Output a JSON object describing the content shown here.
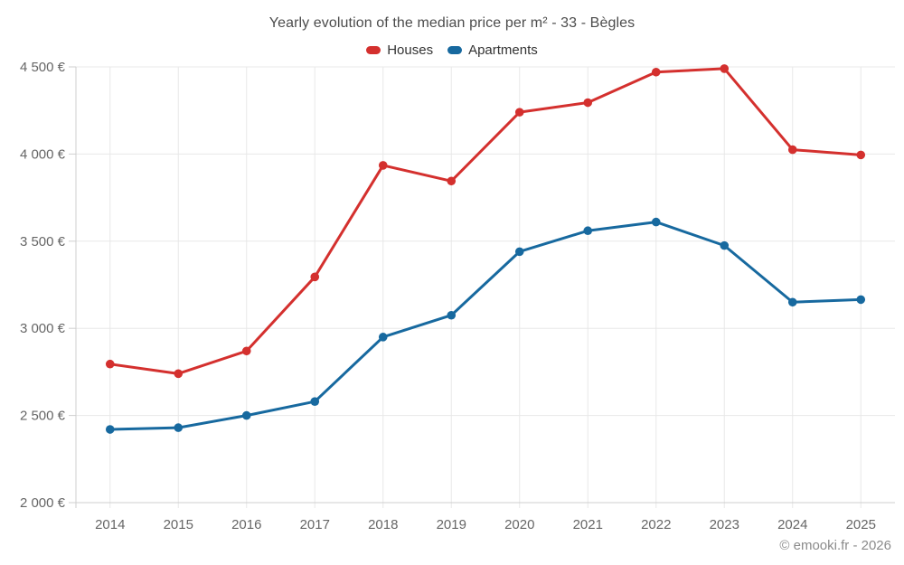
{
  "title": "Yearly evolution of the median price per m² - 33 - Bègles",
  "legend": {
    "houses": {
      "label": "Houses",
      "color": "#d4302e"
    },
    "apartments": {
      "label": "Apartments",
      "color": "#17699f"
    }
  },
  "footer": "© emooki.fr - 2026",
  "colors": {
    "houses": "#d4302e",
    "apartments": "#17699f",
    "grid": "#e8e8e8",
    "axis": "#cfcfcf",
    "axis_text": "#666666",
    "title_text": "#4c4c4c",
    "footer_text": "#8b8b8b"
  },
  "chart_data": {
    "type": "line",
    "title": "Yearly evolution of the median price per m² - 33 - Bègles",
    "categories": [
      "2014",
      "2015",
      "2016",
      "2017",
      "2018",
      "2019",
      "2020",
      "2021",
      "2022",
      "2023",
      "2024",
      "2025"
    ],
    "series": [
      {
        "name": "Houses",
        "color": "#d4302e",
        "values": [
          2795,
          2740,
          2870,
          3295,
          3935,
          3845,
          4240,
          4295,
          4470,
          4490,
          4025,
          3995
        ]
      },
      {
        "name": "Apartments",
        "color": "#17699f",
        "values": [
          2420,
          2430,
          2500,
          2580,
          2950,
          3075,
          3440,
          3560,
          3610,
          3475,
          3150,
          3165
        ]
      }
    ],
    "xlabel": "",
    "ylabel": "",
    "ylim": [
      2000,
      4500
    ],
    "ytick_step": 500,
    "ytick_labels": [
      "2 000 €",
      "2 500 €",
      "3 000 €",
      "3 500 €",
      "4 000 €",
      "4 500 €"
    ],
    "grid": true,
    "legend_position": "top",
    "marker": "circle"
  }
}
